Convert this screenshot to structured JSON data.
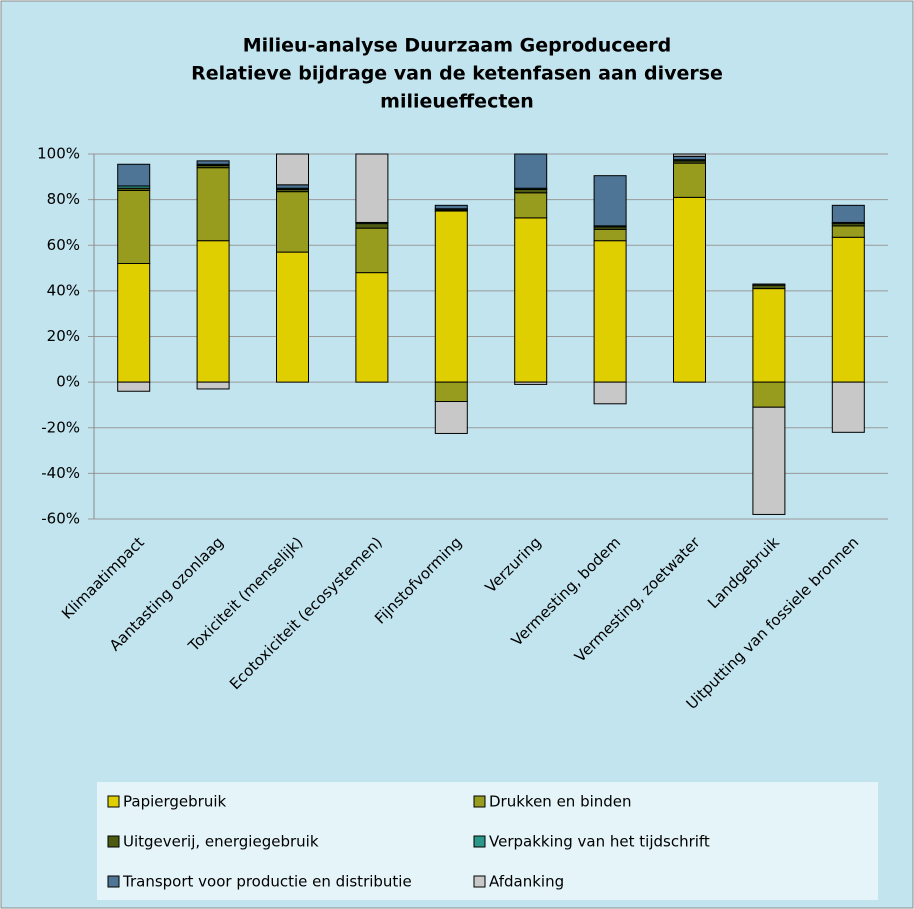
{
  "chart_data": {
    "type": "stacked_bar",
    "title": [
      "Milieu-analyse Duurzaam Geproduceerd",
      "Relatieve bijdrage van de ketenfasen aan diverse",
      "milieueffecten"
    ],
    "categories": [
      "Klimaatimpact",
      "Aantasting ozonlaag",
      "Toxiciteit (menselijk)",
      "Ecotoxiciteit (ecosystemen)",
      "Fijnstofvorming",
      "Verzuring",
      "Vermesting, bodem",
      "Vermesting, zoetwater",
      "Landgebruik",
      "Uitputting van fossiele bronnen"
    ],
    "series": [
      {
        "name": "Papiergebruik",
        "color": "#e0cf00",
        "values": [
          52,
          62,
          57,
          48,
          75,
          72,
          62,
          81,
          41,
          63.5
        ]
      },
      {
        "name": "Drukken en binden",
        "color": "#979c1e",
        "values": [
          32,
          32,
          26.5,
          19.5,
          -8.5,
          11,
          5,
          15,
          -11,
          5
        ]
      },
      {
        "name": "Uitgeverij, energiegebruik",
        "color": "#4d5a12",
        "values": [
          1,
          1,
          1,
          2,
          0.5,
          1.5,
          1,
          1,
          1.5,
          1
        ]
      },
      {
        "name": "Verpakking van het tijdschrift",
        "color": "#2a978a",
        "values": [
          1,
          0.5,
          0.5,
          0.5,
          0.5,
          0.5,
          0.5,
          0.5,
          0,
          0.5
        ]
      },
      {
        "name": "Transport voor productie en distributie",
        "color": "#4f7596",
        "values": [
          9.5,
          1.5,
          1.5,
          0,
          1.5,
          15,
          22,
          1.5,
          0.5,
          7.5
        ]
      },
      {
        "name": "Afdanking",
        "color": "#c8c8c8",
        "values": [
          -4,
          -3,
          13.5,
          30,
          -14,
          -1,
          -9.5,
          1,
          -47,
          -22
        ]
      }
    ],
    "ylim": [
      -60,
      100
    ],
    "yticks": [
      {
        "value": -60,
        "label": "-60%"
      },
      {
        "value": -40,
        "label": "-40%"
      },
      {
        "value": -20,
        "label": "-20%"
      },
      {
        "value": 0,
        "label": "0%"
      },
      {
        "value": 20,
        "label": "20%"
      },
      {
        "value": 40,
        "label": "40%"
      },
      {
        "value": 60,
        "label": "60%"
      },
      {
        "value": 80,
        "label": "80%"
      },
      {
        "value": 100,
        "label": "100%"
      }
    ],
    "grid": true
  }
}
